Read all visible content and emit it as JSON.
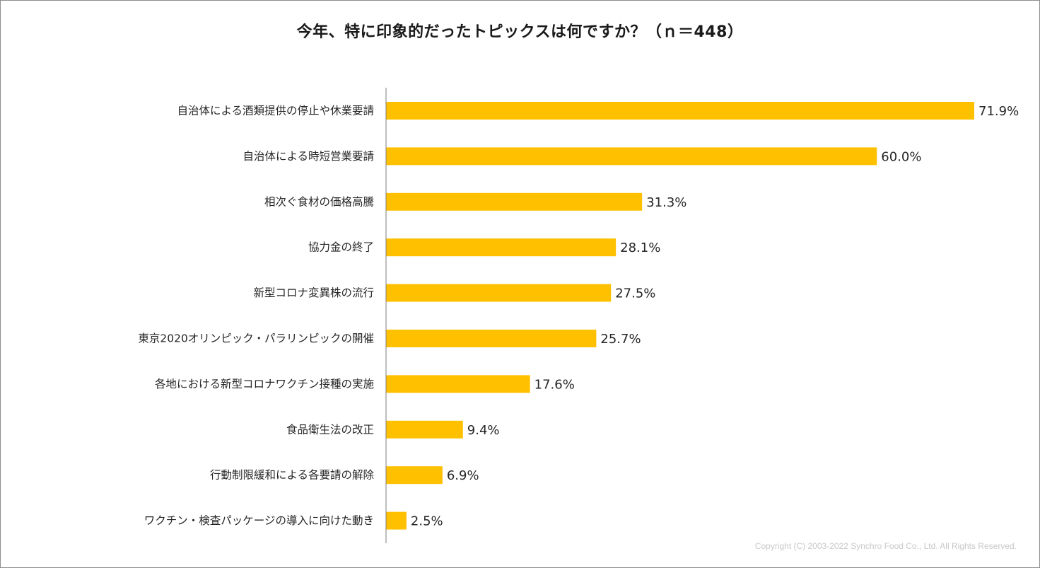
{
  "chart_data": {
    "type": "bar",
    "orientation": "horizontal",
    "title": "今年、特に印象的だったトピックスは何ですか？（ｎ＝448）",
    "categories": [
      "自治体による酒類提供の停止や休業要請",
      "自治体による時短営業要請",
      "相次ぐ食材の価格高騰",
      "協力金の終了",
      "新型コロナ変異株の流行",
      "東京2020オリンピック・パラリンピックの開催",
      "各地における新型コロナワクチン接種の実施",
      "食品衛生法の改正",
      "行動制限緩和による各要請の解除",
      "ワクチン・検査パッケージの導入に向けた動き"
    ],
    "values": [
      71.9,
      60.0,
      31.3,
      28.1,
      27.5,
      25.7,
      17.6,
      9.4,
      6.9,
      2.5
    ],
    "value_labels": [
      "71.9%",
      "60.0%",
      "31.3%",
      "28.1%",
      "27.5%",
      "25.7%",
      "17.6%",
      "9.4%",
      "6.9%",
      "2.5%"
    ],
    "unit": "%",
    "xlim": [
      0,
      71.9
    ],
    "bar_color": "#FFC000",
    "axis_color": "#7f7f7f",
    "grid": false,
    "legend": "none"
  },
  "footer": {
    "copyright": "Copyright (C) 2003-2022  Synchro Food Co., Ltd. All Rights Reserved."
  }
}
